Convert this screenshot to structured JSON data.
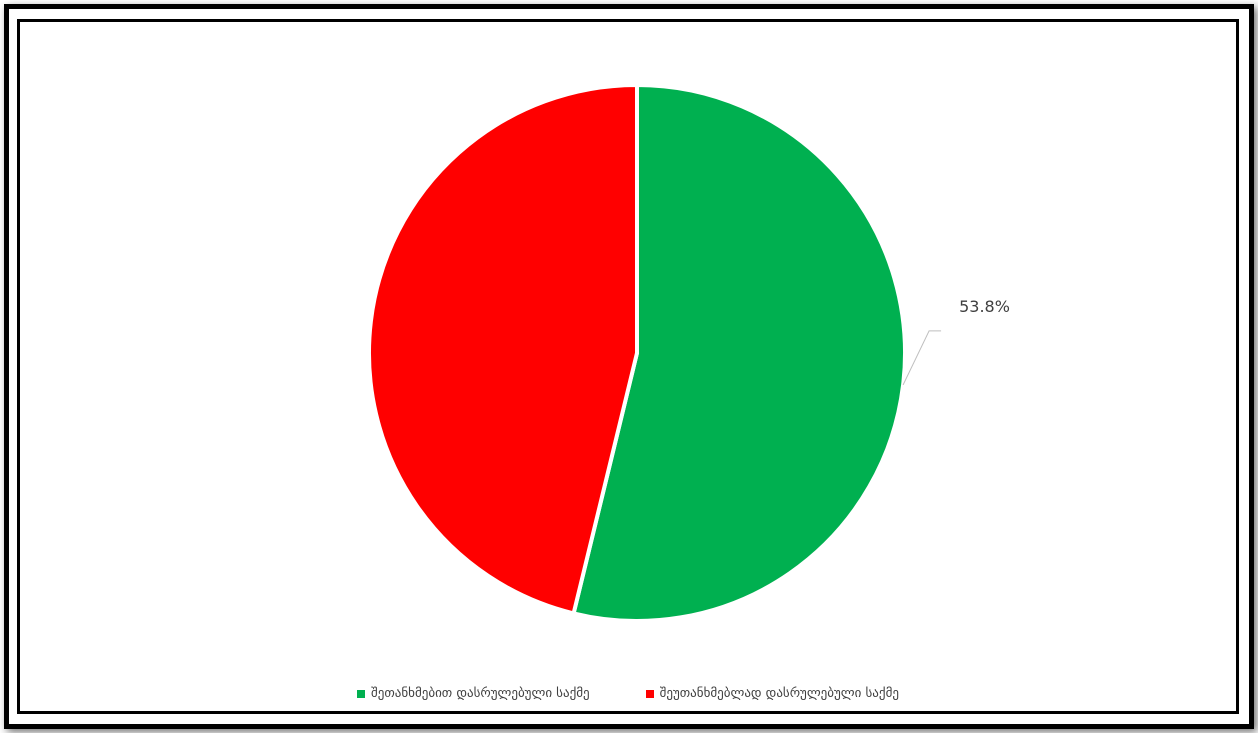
{
  "chart_data": {
    "type": "pie",
    "title": "",
    "categories": [
      "შეთანხმებით დასრულებული საქმე",
      "შეუთანხმებლად დასრულებული საქმე"
    ],
    "values": [
      53.8,
      46.2
    ],
    "colors": [
      "#00b050",
      "#ff0000"
    ],
    "data_labels": [
      "53.8%",
      ""
    ],
    "legend_position": "bottom"
  }
}
